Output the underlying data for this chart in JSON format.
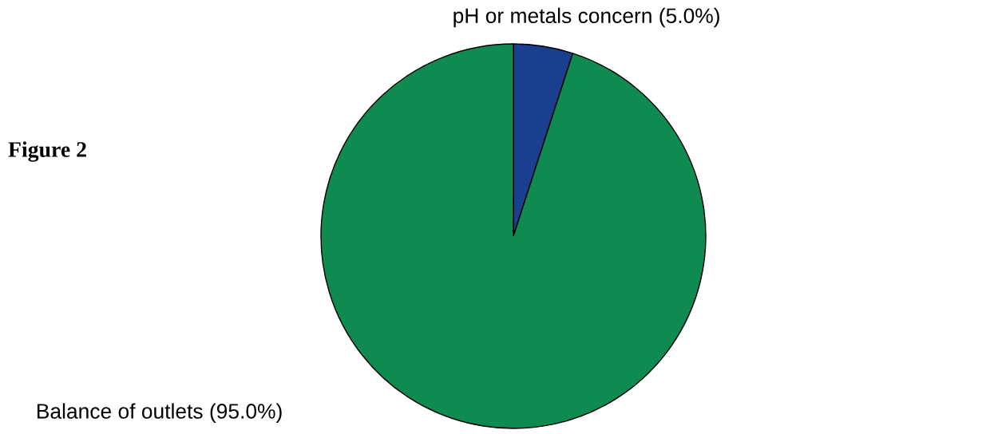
{
  "chart_data": {
    "type": "pie",
    "title": "Figure 2",
    "categories": [
      "pH or metals concern (5.0%)",
      "Balance of outlets (95.0%)"
    ],
    "values": [
      5.0,
      95.0
    ],
    "colors": [
      "#1b3f8f",
      "#0f8a50"
    ],
    "legend": false
  }
}
